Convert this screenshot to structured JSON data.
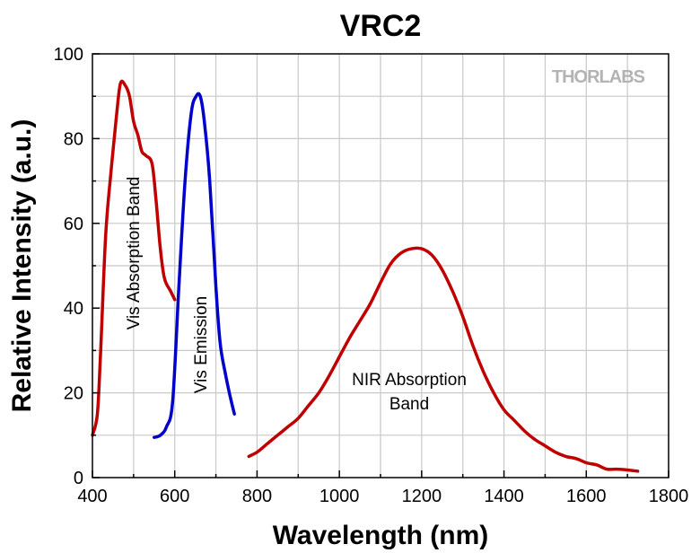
{
  "chart_data": {
    "type": "line",
    "title": "VRC2",
    "xlabel": "Wavelength (nm)",
    "ylabel": "Relative Intensity (a.u.)",
    "xlim": [
      400,
      1800
    ],
    "ylim": [
      0,
      100
    ],
    "xticks": [
      400,
      600,
      800,
      1000,
      1200,
      1400,
      1600,
      1800
    ],
    "yticks": [
      0,
      20,
      40,
      60,
      80,
      100
    ],
    "grid": true,
    "logo": "THORLABS",
    "series": [
      {
        "color": "#c00000",
        "annotation": "Vis Absorption Band",
        "points": [
          [
            400,
            10
          ],
          [
            412,
            15
          ],
          [
            420,
            30
          ],
          [
            432,
            57
          ],
          [
            445,
            72
          ],
          [
            458,
            85
          ],
          [
            468,
            93
          ],
          [
            480,
            92.5
          ],
          [
            490,
            90
          ],
          [
            500,
            84
          ],
          [
            510,
            81
          ],
          [
            520,
            77
          ],
          [
            530,
            76
          ],
          [
            545,
            74
          ],
          [
            555,
            65
          ],
          [
            565,
            54
          ],
          [
            575,
            47
          ],
          [
            590,
            44
          ],
          [
            600,
            42
          ]
        ]
      },
      {
        "color": "#0000cc",
        "annotation": "Vis Emission",
        "points": [
          [
            550,
            9.5
          ],
          [
            565,
            10
          ],
          [
            580,
            12
          ],
          [
            595,
            18
          ],
          [
            610,
            45
          ],
          [
            625,
            70
          ],
          [
            640,
            86
          ],
          [
            652,
            90
          ],
          [
            662,
            90
          ],
          [
            672,
            84
          ],
          [
            685,
            70
          ],
          [
            700,
            45
          ],
          [
            710,
            32
          ],
          [
            722,
            25
          ],
          [
            735,
            19
          ],
          [
            745,
            15
          ]
        ]
      },
      {
        "color": "#c00000",
        "annotation": "NIR Absorption Band",
        "annotation_lines": [
          "NIR Absorption",
          "Band"
        ],
        "points": [
          [
            780,
            5
          ],
          [
            800,
            6
          ],
          [
            825,
            8
          ],
          [
            850,
            10
          ],
          [
            875,
            12
          ],
          [
            900,
            14
          ],
          [
            925,
            17
          ],
          [
            950,
            20
          ],
          [
            975,
            24
          ],
          [
            1000,
            28.5
          ],
          [
            1025,
            33
          ],
          [
            1050,
            37
          ],
          [
            1075,
            41
          ],
          [
            1100,
            46
          ],
          [
            1125,
            50.5
          ],
          [
            1150,
            53
          ],
          [
            1175,
            54
          ],
          [
            1200,
            54
          ],
          [
            1225,
            52.5
          ],
          [
            1250,
            49
          ],
          [
            1275,
            44
          ],
          [
            1300,
            38
          ],
          [
            1325,
            31
          ],
          [
            1350,
            25
          ],
          [
            1375,
            20
          ],
          [
            1400,
            16
          ],
          [
            1425,
            13.5
          ],
          [
            1450,
            11
          ],
          [
            1475,
            9
          ],
          [
            1500,
            7.5
          ],
          [
            1525,
            6
          ],
          [
            1550,
            5
          ],
          [
            1575,
            4.5
          ],
          [
            1600,
            3.5
          ],
          [
            1625,
            3
          ],
          [
            1650,
            2
          ],
          [
            1675,
            2
          ],
          [
            1700,
            1.8
          ],
          [
            1725,
            1.5
          ]
        ]
      }
    ]
  }
}
